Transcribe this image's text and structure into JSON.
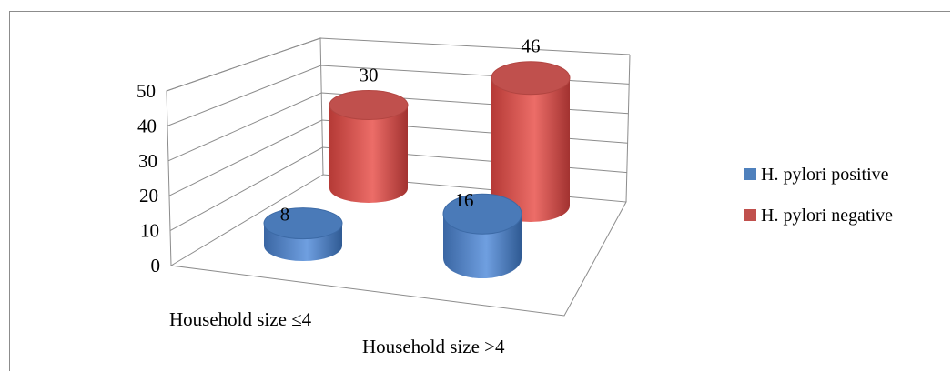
{
  "chart_data": {
    "type": "bar",
    "style": "3d-cylinder",
    "categories": [
      "Household size ≤4",
      "Household size >4"
    ],
    "series": [
      {
        "name": "H. pylori positive",
        "values": [
          8,
          16
        ],
        "color": "#4f81bd"
      },
      {
        "name": "H. pylori negative",
        "values": [
          30,
          46
        ],
        "color": "#c0504d"
      }
    ],
    "ylim": [
      0,
      50
    ],
    "yticks": [
      "0",
      "10",
      "20",
      "30",
      "40",
      "50"
    ],
    "grid": true,
    "legend_position": "right"
  }
}
